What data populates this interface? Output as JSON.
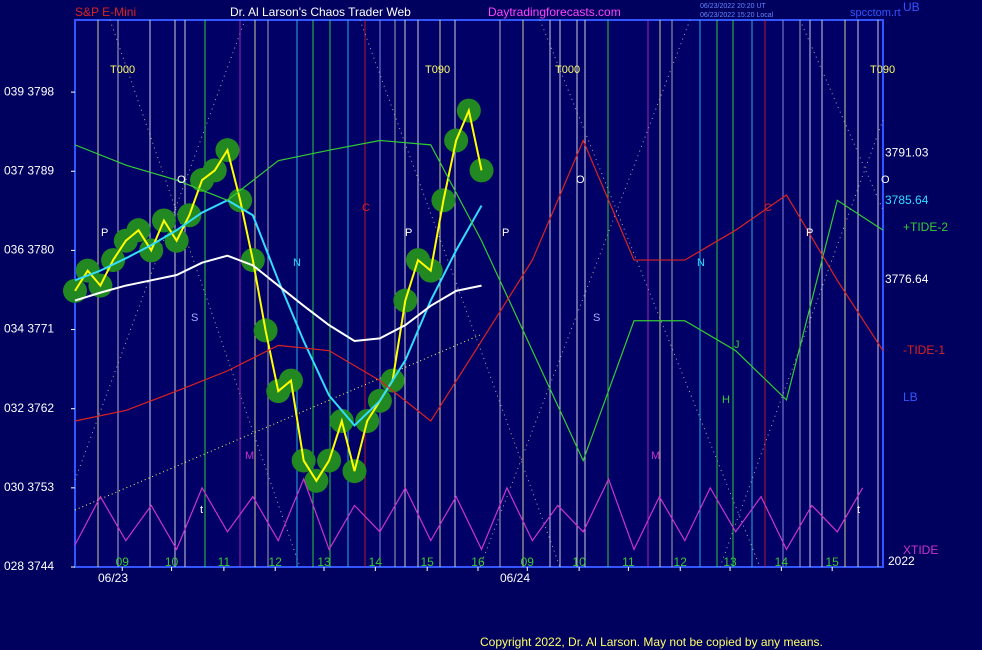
{
  "chart_data": {
    "type": "line",
    "title": "Dr. Al Larson's Chaos Trader Web",
    "instrument": "S&P E-Mini",
    "site": "Daytradingforecasts.com",
    "stamp": [
      "06/23/2022 20:20 UT",
      "06/23/2022 15:20 Local"
    ],
    "corner": "spcctom.rt",
    "copyright": "Copyright 2022, Dr. Al Larson. May not be copied by any means.",
    "year": "2022",
    "dates": [
      "06/23",
      "06/24"
    ],
    "xlim": [
      0,
      15.9
    ],
    "xticks": [
      {
        "value": 0.93,
        "label": "09"
      },
      {
        "value": 1.9,
        "label": "10"
      },
      {
        "value": 2.93,
        "label": "11"
      },
      {
        "value": 3.94,
        "label": "12"
      },
      {
        "value": 4.9,
        "label": "13"
      },
      {
        "value": 5.91,
        "label": "14"
      },
      {
        "value": 6.93,
        "label": "15"
      },
      {
        "value": 7.93,
        "label": "16"
      },
      {
        "value": 8.9,
        "label": "09"
      },
      {
        "value": 9.92,
        "label": "10"
      },
      {
        "value": 10.89,
        "label": "11"
      },
      {
        "value": 11.91,
        "label": "12"
      },
      {
        "value": 12.89,
        "label": "13"
      },
      {
        "value": 13.9,
        "label": "14"
      },
      {
        "value": 14.9,
        "label": "15"
      }
    ],
    "ylim": [
      3744,
      3806.2
    ],
    "yticks": [
      {
        "value": 3744,
        "label": "028 3744"
      },
      {
        "value": 3753,
        "label": "030 3753"
      },
      {
        "value": 3762,
        "label": "032 3762"
      },
      {
        "value": 3771,
        "label": "034 3771"
      },
      {
        "value": 3780,
        "label": "036 3780"
      },
      {
        "value": 3789,
        "label": "037 3789"
      },
      {
        "value": 3798,
        "label": "039 3798"
      }
    ],
    "series": [
      {
        "color": "#ffff00",
        "x": [
          0,
          0.25,
          0.5,
          0.75,
          1,
          1.25,
          1.5,
          1.75,
          2,
          2.25,
          2.5,
          2.75,
          3,
          3.25,
          3.5,
          3.75,
          4,
          4.25,
          4.5,
          4.75,
          5,
          5.25,
          5.5,
          5.75,
          6,
          6.25,
          6.5,
          6.75,
          7,
          7.25,
          7.5,
          7.75,
          8
        ],
        "values": [
          3775.4,
          3777.7,
          3776.0,
          3778.9,
          3781.1,
          3782.3,
          3780.0,
          3783.4,
          3781.1,
          3784.0,
          3788.0,
          3789.1,
          3791.4,
          3785.7,
          3778.9,
          3770.9,
          3764.0,
          3765.2,
          3756.1,
          3753.8,
          3756.1,
          3760.6,
          3754.9,
          3760.6,
          3762.9,
          3765.2,
          3774.3,
          3778.9,
          3777.7,
          3785.7,
          3792.5,
          3795.9,
          3789.1
        ]
      },
      {
        "color": "#33ddff",
        "x": [
          0,
          0.5,
          1,
          1.5,
          2,
          2.5,
          3,
          3.5,
          4,
          4.5,
          5,
          5.5,
          6,
          6.5,
          7,
          7.5,
          8
        ],
        "values": [
          3776.6,
          3777.7,
          3779.1,
          3780.6,
          3782.3,
          3784.3,
          3785.7,
          3784.0,
          3776.6,
          3769.7,
          3763.5,
          3760.1,
          3762.9,
          3767.5,
          3774.3,
          3780.0,
          3785.1
        ]
      },
      {
        "color": "#ffffff",
        "x": [
          0,
          0.5,
          1,
          1.5,
          2,
          2.5,
          3,
          3.5,
          4,
          4.5,
          5,
          5.5,
          6,
          6.5,
          7,
          7.5,
          8
        ],
        "values": [
          3774.3,
          3775.2,
          3776.0,
          3776.6,
          3777.2,
          3778.6,
          3779.4,
          3778.3,
          3776.0,
          3773.7,
          3771.5,
          3769.7,
          3770.0,
          3771.5,
          3773.7,
          3775.4,
          3776.0
        ]
      },
      {
        "name": "+TIDE-2",
        "color": "#33cc33",
        "x": [
          0,
          1,
          2,
          3,
          4,
          5,
          6,
          7,
          8,
          9,
          10,
          11,
          12,
          13,
          14,
          15,
          15.9
        ],
        "values": [
          3792.0,
          3789.7,
          3788.0,
          3785.7,
          3790.2,
          3791.4,
          3792.5,
          3792.0,
          3781.1,
          3768.6,
          3756.1,
          3772.0,
          3772.0,
          3768.6,
          3763.0,
          3785.7,
          3782.3
        ]
      },
      {
        "name": "-TIDE-1",
        "color": "#dd2222",
        "x": [
          0,
          1,
          2,
          3,
          4,
          5,
          6,
          7,
          8,
          9,
          10,
          11,
          12,
          13,
          14,
          15,
          15.9
        ],
        "values": [
          3760.6,
          3761.8,
          3764.0,
          3766.3,
          3769.2,
          3768.6,
          3765.2,
          3760.6,
          3769.7,
          3778.9,
          3792.5,
          3778.9,
          3778.9,
          3782.3,
          3786.3,
          3776.6,
          3768.6
        ]
      },
      {
        "name": "XTIDE",
        "color": "#cc33cc",
        "x": [
          0,
          0.5,
          1,
          1.5,
          2,
          2.5,
          3,
          3.5,
          4,
          4.5,
          5,
          5.5,
          6,
          6.5,
          7,
          7.5,
          8,
          8.5,
          9,
          9.5,
          10,
          10.5,
          11,
          11.5,
          12,
          12.5,
          13,
          13.5,
          14,
          14.5,
          15,
          15.5
        ],
        "values": [
          3746.5,
          3752,
          3747,
          3751,
          3746,
          3753,
          3748,
          3752,
          3747,
          3754,
          3746,
          3751,
          3748,
          3753,
          3747,
          3752,
          3746,
          3753,
          3747,
          3751,
          3748,
          3754,
          3746,
          3752,
          3747,
          3753,
          3748,
          3752,
          3746,
          3751,
          3748,
          3753
        ]
      }
    ],
    "right_labels": [
      {
        "text": "3791.03",
        "value": 3791.03,
        "color": "#ffffff"
      },
      {
        "text": "3785.64",
        "value": 3785.64,
        "color": "#33ddff"
      },
      {
        "text": "3776.64",
        "value": 3776.64,
        "color": "#ffffff"
      }
    ],
    "band_labels": [
      "UB",
      "LB"
    ],
    "annotations": [
      {
        "text": "T000",
        "color": "#ffff66"
      },
      {
        "text": "T090",
        "color": "#ffff66"
      },
      {
        "text": "T000",
        "color": "#ffff66"
      },
      {
        "text": "T090",
        "color": "#ffff66"
      },
      {
        "text": "O",
        "color": "#ffffff"
      },
      {
        "text": "O",
        "color": "#ffffff"
      },
      {
        "text": "O",
        "color": "#ffffff"
      },
      {
        "text": "P",
        "color": "#ffffff"
      },
      {
        "text": "P",
        "color": "#ffffff"
      },
      {
        "text": "P",
        "color": "#ffffff"
      },
      {
        "text": "P",
        "color": "#ffffff"
      },
      {
        "text": "S",
        "color": "#aaaaff"
      },
      {
        "text": "S",
        "color": "#aaaaff"
      },
      {
        "text": "N",
        "color": "#33ddff"
      },
      {
        "text": "N",
        "color": "#33ddff"
      },
      {
        "text": "C",
        "color": "#dd2222"
      },
      {
        "text": "C",
        "color": "#dd2222"
      },
      {
        "text": "M",
        "color": "#cc33cc"
      },
      {
        "text": "M",
        "color": "#cc33cc"
      },
      {
        "text": "H",
        "color": "#33cc33"
      },
      {
        "text": "J",
        "color": "#33cc33"
      },
      {
        "text": "t",
        "color": "#ffffff"
      },
      {
        "text": "t",
        "color": "#ffffff"
      }
    ]
  }
}
